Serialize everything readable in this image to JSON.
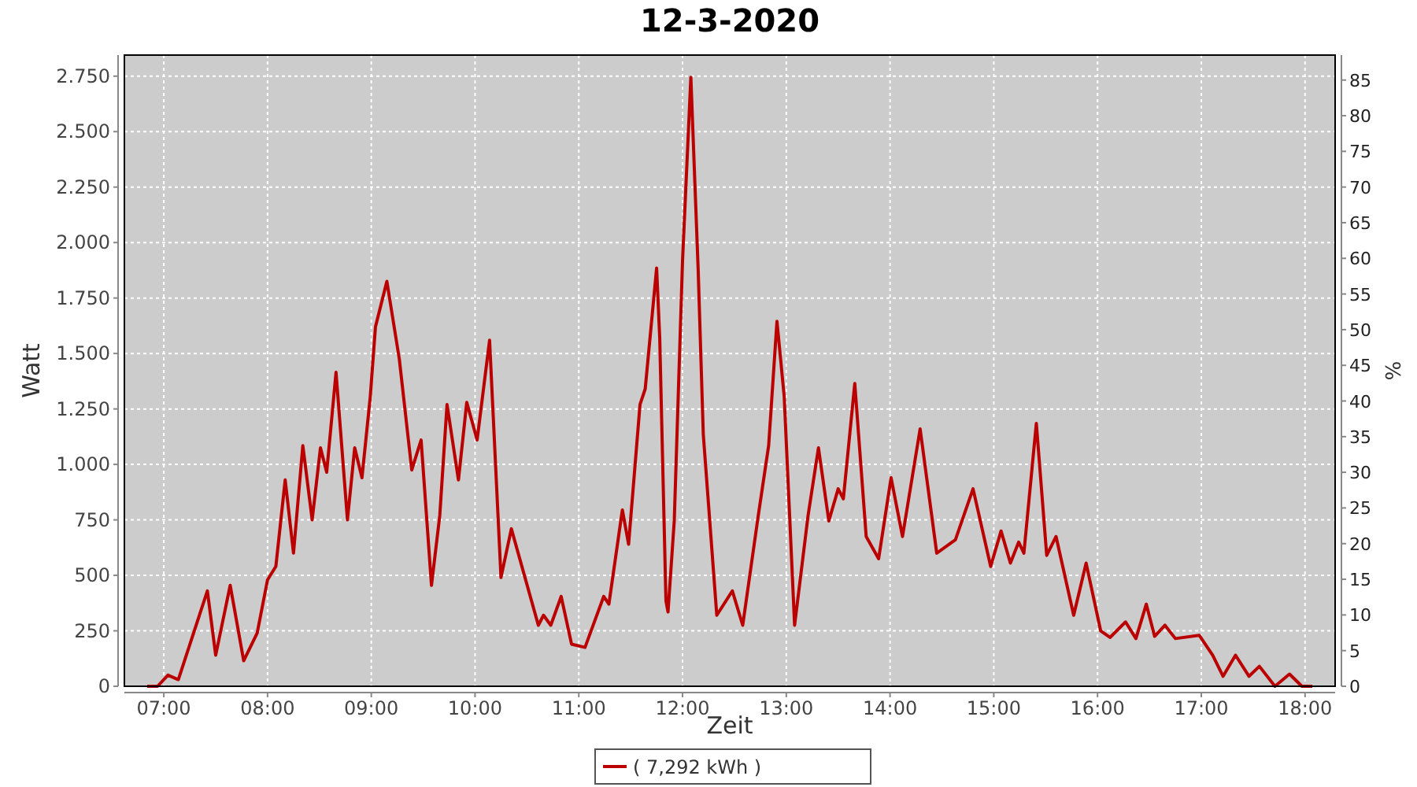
{
  "chart_data": {
    "type": "line",
    "title": "12-3-2020",
    "xlabel": "Zeit",
    "ylabel": "Watt",
    "y2label": "%",
    "xlim": [
      6.62,
      18.29
    ],
    "xticks": [
      {
        "value": 7,
        "label": "07:00"
      },
      {
        "value": 8,
        "label": "08:00"
      },
      {
        "value": 9,
        "label": "09:00"
      },
      {
        "value": 10,
        "label": "10:00"
      },
      {
        "value": 11,
        "label": "11:00"
      },
      {
        "value": 12,
        "label": "12:00"
      },
      {
        "value": 13,
        "label": "13:00"
      },
      {
        "value": 14,
        "label": "14:00"
      },
      {
        "value": 15,
        "label": "15:00"
      },
      {
        "value": 16,
        "label": "16:00"
      },
      {
        "value": 17,
        "label": "17:00"
      },
      {
        "value": 18,
        "label": "18:00"
      }
    ],
    "ylim": [
      0,
      2845
    ],
    "yticks": [
      0,
      250,
      500,
      750,
      {
        "value": 1000,
        "label": "1.000"
      },
      {
        "value": 1250,
        "label": "1.250"
      },
      {
        "value": 1500,
        "label": "1.500"
      },
      {
        "value": 1750,
        "label": "1.750"
      },
      {
        "value": 2000,
        "label": "2.000"
      },
      {
        "value": 2250,
        "label": "2.250"
      },
      {
        "value": 2500,
        "label": "2.500"
      },
      {
        "value": 2750,
        "label": "2.750"
      }
    ],
    "y2lim": [
      0,
      88.5
    ],
    "y2ticks": [
      0,
      5,
      10,
      15,
      20,
      25,
      30,
      35,
      40,
      45,
      50,
      55,
      60,
      65,
      70,
      75,
      80,
      85
    ],
    "grid": true,
    "legend": "bottom",
    "marker": "none",
    "line_style": "solid",
    "series": [
      {
        "name": "( 7,292 kWh )",
        "color": "#bb0000",
        "x": [
          6.84,
          6.94,
          7.04,
          7.14,
          7.42,
          7.5,
          7.64,
          7.77,
          7.9,
          8.0,
          8.08,
          8.17,
          8.25,
          8.34,
          8.43,
          8.51,
          8.57,
          8.66,
          8.77,
          8.84,
          8.91,
          8.99,
          9.04,
          9.15,
          9.27,
          9.39,
          9.48,
          9.58,
          9.66,
          9.73,
          9.84,
          9.92,
          10.02,
          10.14,
          10.25,
          10.35,
          10.61,
          10.66,
          10.73,
          10.83,
          10.93,
          11.06,
          11.24,
          11.29,
          11.42,
          11.48,
          11.59,
          11.64,
          11.75,
          11.78,
          11.84,
          11.86,
          11.92,
          12.0,
          12.08,
          12.15,
          12.2,
          12.33,
          12.48,
          12.58,
          12.73,
          12.83,
          12.91,
          12.98,
          13.08,
          13.21,
          13.31,
          13.41,
          13.5,
          13.55,
          13.66,
          13.77,
          13.89,
          14.01,
          14.12,
          14.29,
          14.45,
          14.63,
          14.8,
          14.97,
          15.07,
          15.16,
          15.24,
          15.29,
          15.41,
          15.51,
          15.6,
          15.77,
          15.89,
          16.03,
          16.12,
          16.27,
          16.37,
          16.47,
          16.55,
          16.65,
          16.75,
          16.98,
          17.11,
          17.21,
          17.33,
          17.46,
          17.56,
          17.71,
          17.85,
          17.97,
          18.07
        ],
        "values": [
          0,
          0,
          50,
          30,
          430,
          140,
          455,
          115,
          240,
          480,
          540,
          930,
          600,
          1085,
          750,
          1075,
          965,
          1415,
          750,
          1075,
          940,
          1305,
          1620,
          1825,
          1475,
          975,
          1110,
          455,
          770,
          1270,
          930,
          1280,
          1110,
          1560,
          490,
          710,
          275,
          320,
          275,
          405,
          190,
          175,
          405,
          370,
          795,
          640,
          1270,
          1340,
          1885,
          1570,
          385,
          335,
          745,
          1920,
          2745,
          1885,
          1135,
          320,
          430,
          275,
          770,
          1085,
          1645,
          1305,
          275,
          770,
          1075,
          745,
          890,
          845,
          1365,
          675,
          575,
          940,
          675,
          1160,
          600,
          660,
          890,
          540,
          700,
          555,
          650,
          600,
          1185,
          590,
          675,
          320,
          555,
          250,
          220,
          290,
          215,
          370,
          225,
          275,
          215,
          230,
          140,
          45,
          140,
          45,
          90,
          0,
          55,
          0,
          0
        ]
      }
    ]
  }
}
